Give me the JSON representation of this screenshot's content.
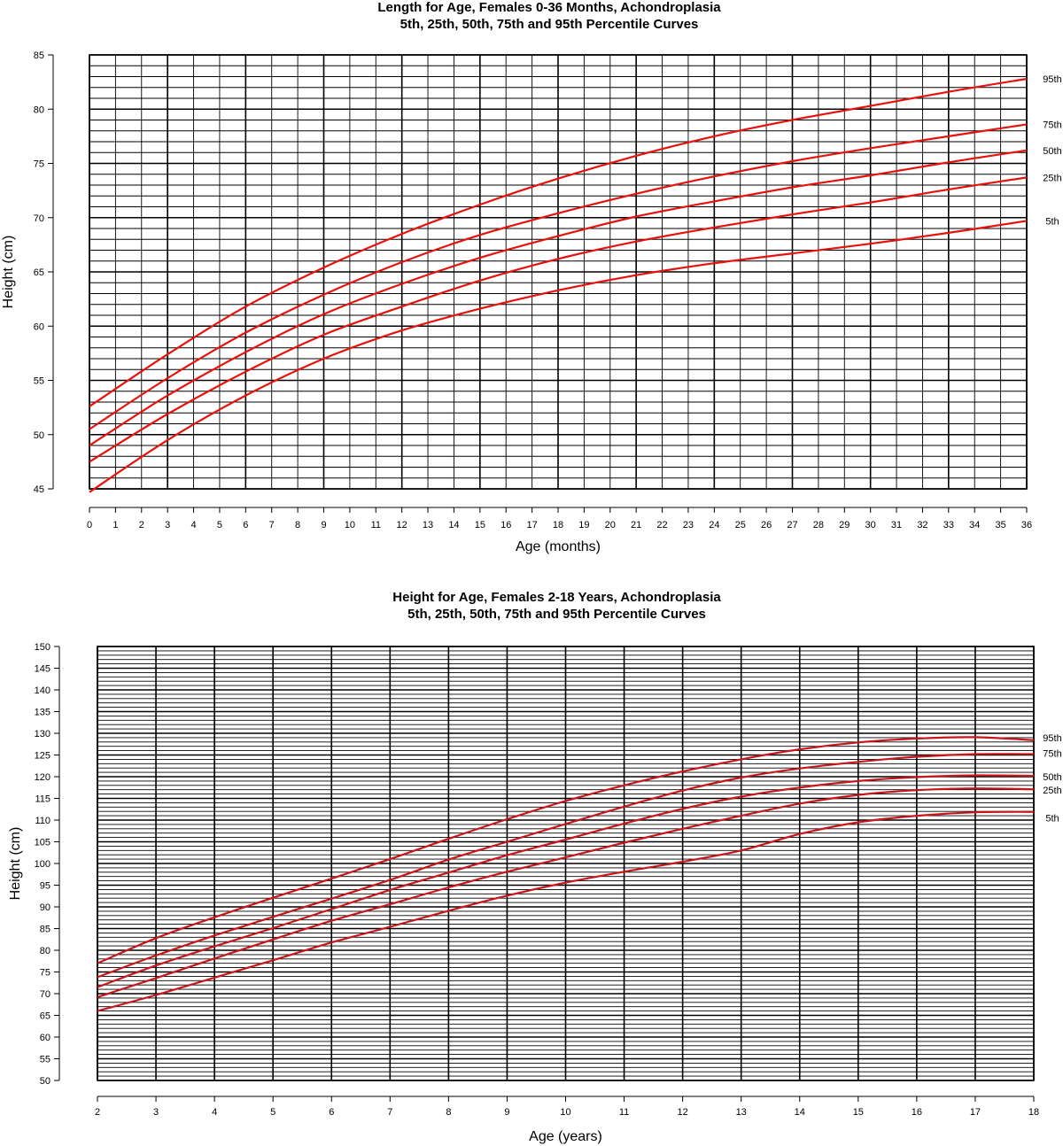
{
  "chart_data": [
    {
      "type": "line",
      "title": "Length for Age, Females 0-36 Months, Achondroplasia",
      "subtitle": "5th, 25th, 50th, 75th and 95th Percentile Curves",
      "xlabel": "Age (months)",
      "ylabel": "Height (cm)",
      "xlim": [
        0,
        36
      ],
      "ylim": [
        45,
        85
      ],
      "x_ticks": [
        0,
        1,
        2,
        3,
        4,
        5,
        6,
        7,
        8,
        9,
        10,
        11,
        12,
        13,
        14,
        15,
        16,
        17,
        18,
        19,
        20,
        21,
        22,
        23,
        24,
        25,
        26,
        27,
        28,
        29,
        30,
        31,
        32,
        33,
        34,
        35,
        36
      ],
      "y_ticks": [
        45,
        50,
        55,
        60,
        65,
        70,
        75,
        80,
        85
      ],
      "grid": true,
      "minor_x_step": 1,
      "major_x_step": 3,
      "minor_y_step": 1,
      "major_y_step": 5,
      "line_color": "#e8120c",
      "x": [
        0,
        3,
        6,
        9,
        12,
        15,
        18,
        21,
        24,
        27,
        30,
        33,
        36
      ],
      "series": [
        {
          "name": "95th",
          "values": [
            52.6,
            57.4,
            61.8,
            65.4,
            68.5,
            71.2,
            73.6,
            75.7,
            77.5,
            79.0,
            80.3,
            81.6,
            82.8
          ]
        },
        {
          "name": "75th",
          "values": [
            50.5,
            55.2,
            59.4,
            62.9,
            65.9,
            68.4,
            70.4,
            72.2,
            73.8,
            75.2,
            76.4,
            77.5,
            78.6
          ]
        },
        {
          "name": "50th",
          "values": [
            49.0,
            53.6,
            57.6,
            61.1,
            63.9,
            66.3,
            68.3,
            70.1,
            71.5,
            72.8,
            73.9,
            75.1,
            76.2
          ]
        },
        {
          "name": "25th",
          "values": [
            47.5,
            51.9,
            55.8,
            59.2,
            61.8,
            64.2,
            66.2,
            67.8,
            69.1,
            70.3,
            71.4,
            72.6,
            73.7
          ]
        },
        {
          "name": "5th",
          "values": [
            44.7,
            49.5,
            53.6,
            57.0,
            59.6,
            61.6,
            63.3,
            64.7,
            65.8,
            66.7,
            67.6,
            68.6,
            69.7
          ]
        }
      ]
    },
    {
      "type": "line",
      "title": "Height for Age, Females 2-18 Years, Achondroplasia",
      "subtitle": "5th, 25th, 50th, 75th and 95th Percentile Curves",
      "xlabel": "Age (years)",
      "ylabel": "Height (cm)",
      "xlim": [
        2,
        18
      ],
      "ylim": [
        50,
        150
      ],
      "x_ticks": [
        2,
        3,
        4,
        5,
        6,
        7,
        8,
        9,
        10,
        11,
        12,
        13,
        14,
        15,
        16,
        17,
        18
      ],
      "y_ticks": [
        50,
        55,
        60,
        65,
        70,
        75,
        80,
        85,
        90,
        95,
        100,
        105,
        110,
        115,
        120,
        125,
        130,
        135,
        140,
        145,
        150
      ],
      "grid": true,
      "minor_x_step": 1,
      "major_x_step": 1,
      "minor_y_step": 1,
      "major_y_step": 5,
      "line_color": "#c8161b",
      "x": [
        2,
        3,
        4,
        5,
        6,
        7,
        8,
        9,
        10,
        11,
        12,
        13,
        14,
        15,
        16,
        17,
        18
      ],
      "series": [
        {
          "name": "95th",
          "values": [
            77.0,
            82.8,
            87.6,
            92.1,
            96.5,
            101.0,
            105.7,
            110.2,
            114.4,
            118.0,
            121.2,
            124.0,
            126.3,
            127.9,
            128.8,
            129.1,
            128.4
          ]
        },
        {
          "name": "75th",
          "values": [
            73.8,
            78.8,
            83.4,
            87.7,
            91.9,
            96.2,
            100.9,
            105.0,
            109.1,
            113.1,
            116.8,
            119.8,
            121.9,
            123.4,
            124.6,
            125.2,
            125.2
          ]
        },
        {
          "name": "50th",
          "values": [
            71.5,
            76.5,
            80.9,
            85.1,
            89.5,
            93.9,
            97.9,
            101.9,
            105.5,
            109.2,
            112.6,
            115.4,
            117.5,
            119.0,
            119.9,
            120.3,
            120.2
          ]
        },
        {
          "name": "25th",
          "values": [
            69.2,
            73.6,
            78.1,
            82.5,
            86.8,
            90.6,
            94.5,
            98.1,
            101.4,
            104.8,
            108.0,
            111.0,
            113.8,
            115.8,
            116.9,
            117.3,
            117.1
          ]
        },
        {
          "name": "5th",
          "values": [
            66.0,
            69.7,
            73.7,
            77.7,
            81.8,
            85.4,
            89.1,
            92.6,
            95.6,
            98.1,
            100.4,
            103.0,
            106.8,
            109.5,
            111.0,
            111.8,
            111.9
          ]
        }
      ]
    }
  ]
}
